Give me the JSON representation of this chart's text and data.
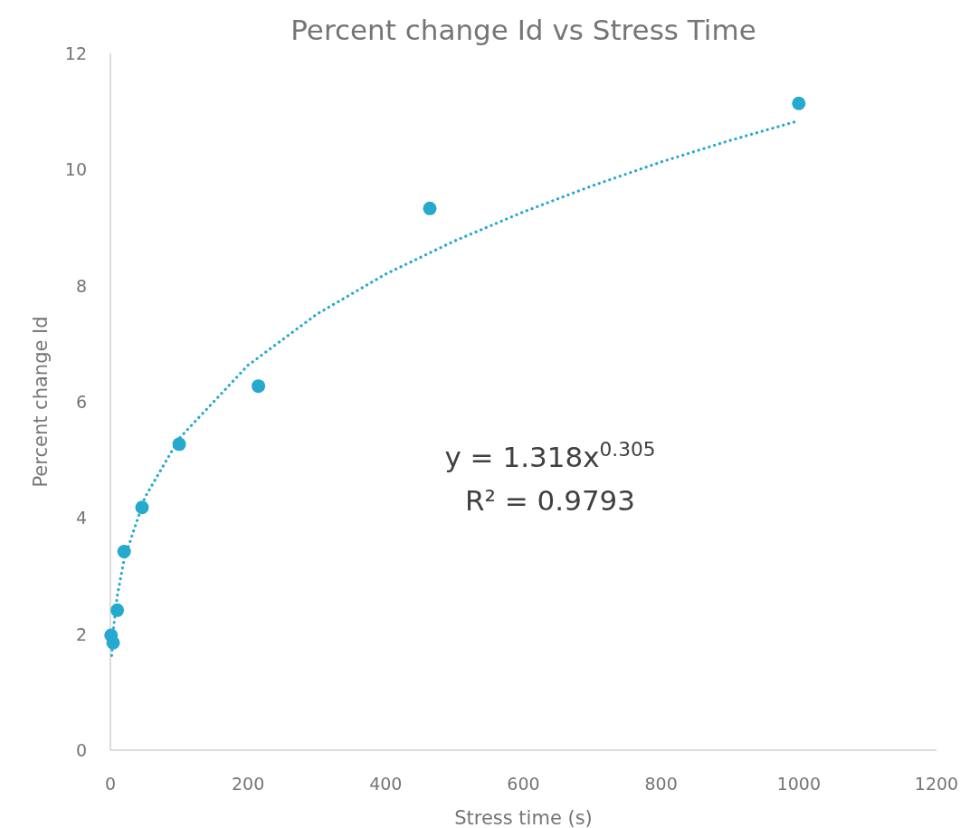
{
  "chart_data": {
    "type": "scatter",
    "title": "Percent change Id vs Stress Time",
    "xlabel": "Stress time (s)",
    "ylabel": "Percent change Id",
    "xlim": [
      0,
      1200
    ],
    "xticks": [
      0,
      200,
      400,
      600,
      800,
      1000,
      1200
    ],
    "ylim": [
      0,
      12
    ],
    "yticks": [
      0,
      2,
      4,
      6,
      8,
      10,
      12
    ],
    "grid": false,
    "series": [
      {
        "color": "#25a9cf",
        "marker": "circle",
        "x": [
          1,
          4,
          10,
          20,
          46,
          100,
          215,
          464,
          1000
        ],
        "values": [
          1.98,
          1.85,
          2.41,
          3.42,
          4.18,
          5.27,
          6.27,
          9.33,
          11.14
        ]
      },
      {
        "type": "line",
        "color": "#25a9cf",
        "line_style": "dotted",
        "x": [
          2,
          5,
          10,
          20,
          50,
          100,
          200,
          300,
          400,
          500,
          600,
          700,
          800,
          900,
          1000
        ],
        "values": [
          1.63,
          2.15,
          2.66,
          3.29,
          4.35,
          5.37,
          6.63,
          7.51,
          8.2,
          8.77,
          9.27,
          9.72,
          10.13,
          10.5,
          10.84
        ]
      }
    ],
    "annotations": [
      "y = 1.318x$^{0.305}$",
      "R² = 0.9793"
    ]
  }
}
